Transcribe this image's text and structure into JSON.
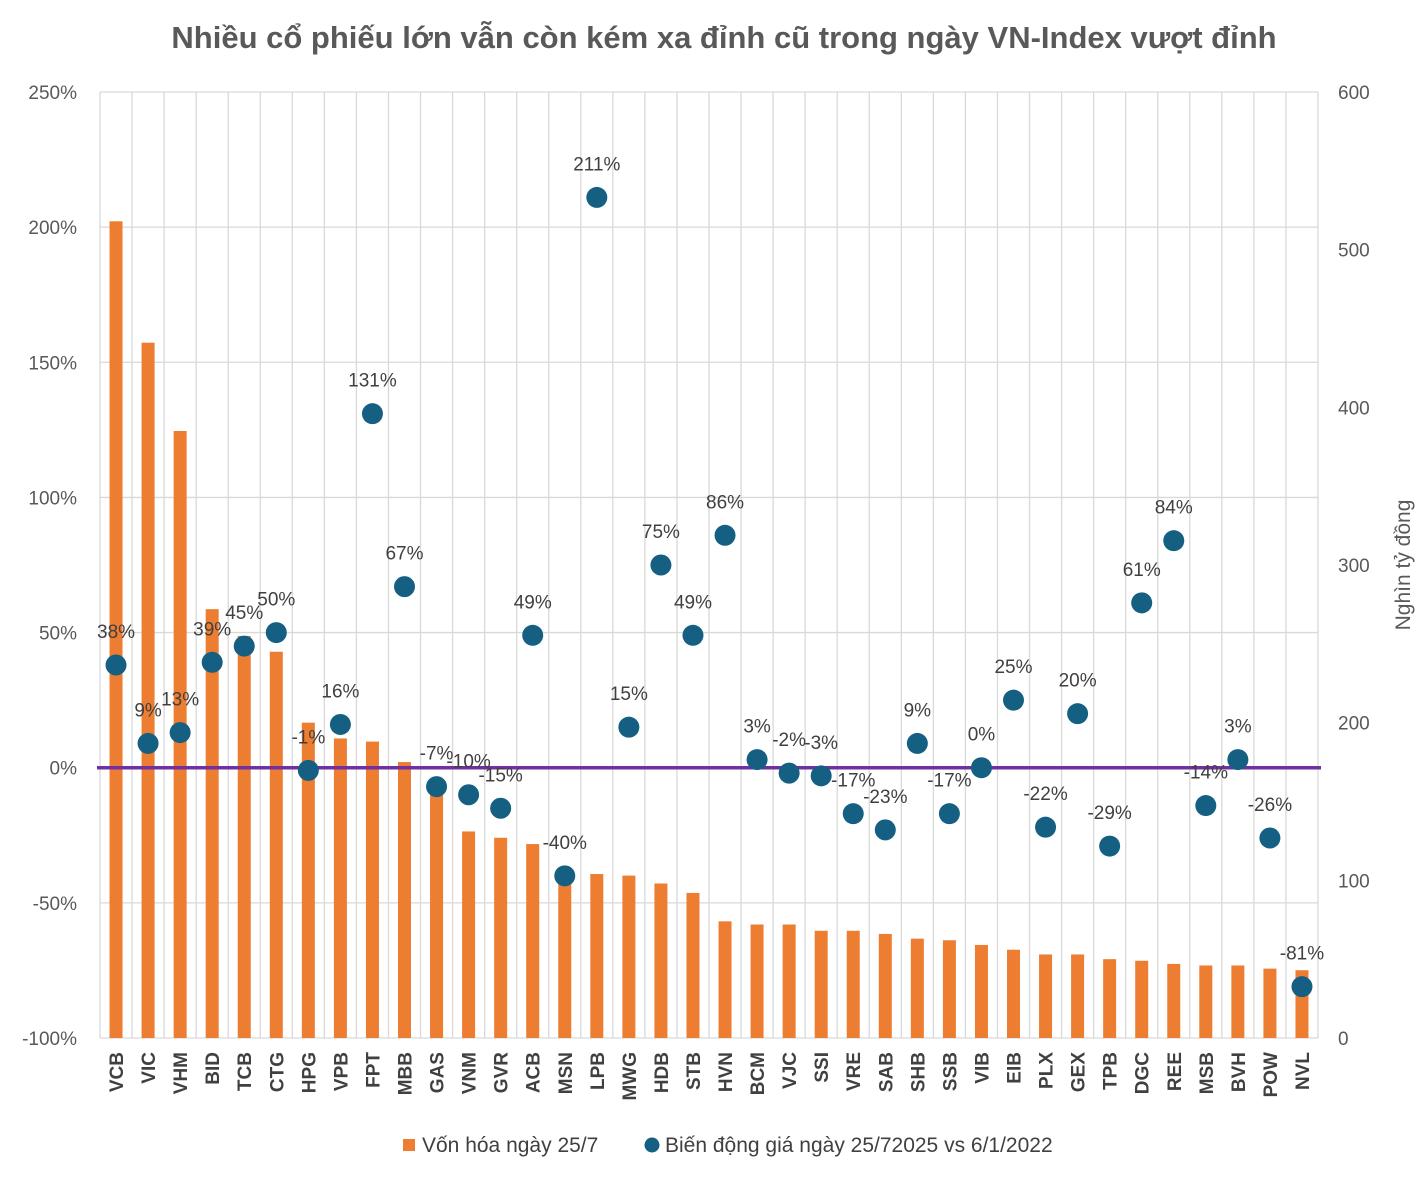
{
  "chart_data": {
    "type": "bar+scatter",
    "title": "Nhiều cổ phiếu lớn vẫn còn kém xa đỉnh cũ trong ngày VN-Index vượt đỉnh",
    "categories": [
      "VCB",
      "VIC",
      "VHM",
      "BID",
      "TCB",
      "CTG",
      "HPG",
      "VPB",
      "FPT",
      "MBB",
      "GAS",
      "VNM",
      "GVR",
      "ACB",
      "MSN",
      "LPB",
      "MWG",
      "HDB",
      "STB",
      "HVN",
      "BCM",
      "VJC",
      "SSI",
      "VRE",
      "SAB",
      "SHB",
      "SSB",
      "VIB",
      "EIB",
      "PLX",
      "GEX",
      "TPB",
      "DGC",
      "REE",
      "MSB",
      "BVH",
      "POW",
      "NVL"
    ],
    "left_axis": {
      "min": -1.0,
      "max": 2.5,
      "step": 0.5,
      "tick_labels": [
        "-100%",
        "-50%",
        "0%",
        "50%",
        "100%",
        "150%",
        "200%",
        "250%"
      ]
    },
    "right_axis": {
      "min": 0,
      "max": 600,
      "step": 100,
      "tick_labels": [
        "0",
        "100",
        "200",
        "300",
        "400",
        "500",
        "600"
      ],
      "label": "Nghìn tỷ đồng"
    },
    "grid": true,
    "legend_position": "bottom",
    "reference_line": {
      "axis": "left",
      "value": 0.0
    },
    "series": [
      {
        "name": "Vốn hóa ngày 25/7",
        "type": "bar",
        "axis": "right",
        "color": "#ED7D31",
        "values": [
          518,
          441,
          385,
          272,
          255,
          245,
          200,
          190,
          188,
          175,
          162,
          131,
          127,
          123,
          105,
          104,
          103,
          98,
          92,
          74,
          72,
          72,
          68,
          68,
          66,
          63,
          62,
          59,
          56,
          53,
          53,
          50,
          49,
          47,
          46,
          46,
          44,
          43
        ]
      },
      {
        "name": "Biến động giá ngày 25/72025 vs 6/1/2022",
        "type": "scatter",
        "axis": "left",
        "color": "#156082",
        "values": [
          0.38,
          0.09,
          0.13,
          0.39,
          0.45,
          0.5,
          -0.01,
          0.16,
          1.31,
          0.67,
          -0.07,
          -0.1,
          -0.15,
          0.49,
          -0.4,
          2.11,
          0.15,
          0.75,
          0.49,
          0.86,
          0.03,
          -0.02,
          -0.03,
          -0.17,
          -0.23,
          0.09,
          -0.17,
          0.0,
          0.25,
          -0.22,
          0.2,
          -0.29,
          0.61,
          0.84,
          -0.14,
          0.03,
          -0.26,
          -0.81
        ],
        "labels": [
          "38%",
          "9%",
          "13%",
          "39%",
          "45%",
          "50%",
          "-1%",
          "16%",
          "131%",
          "67%",
          "-7%",
          "-10%",
          "-15%",
          "49%",
          "-40%",
          "211%",
          "15%",
          "75%",
          "49%",
          "86%",
          "3%",
          "-2%",
          "-3%",
          "-17%",
          "-23%",
          "9%",
          "-17%",
          "0%",
          "25%",
          "-22%",
          "20%",
          "-29%",
          "61%",
          "84%",
          "-14%",
          "3%",
          "-26%",
          "-81%"
        ]
      }
    ]
  }
}
